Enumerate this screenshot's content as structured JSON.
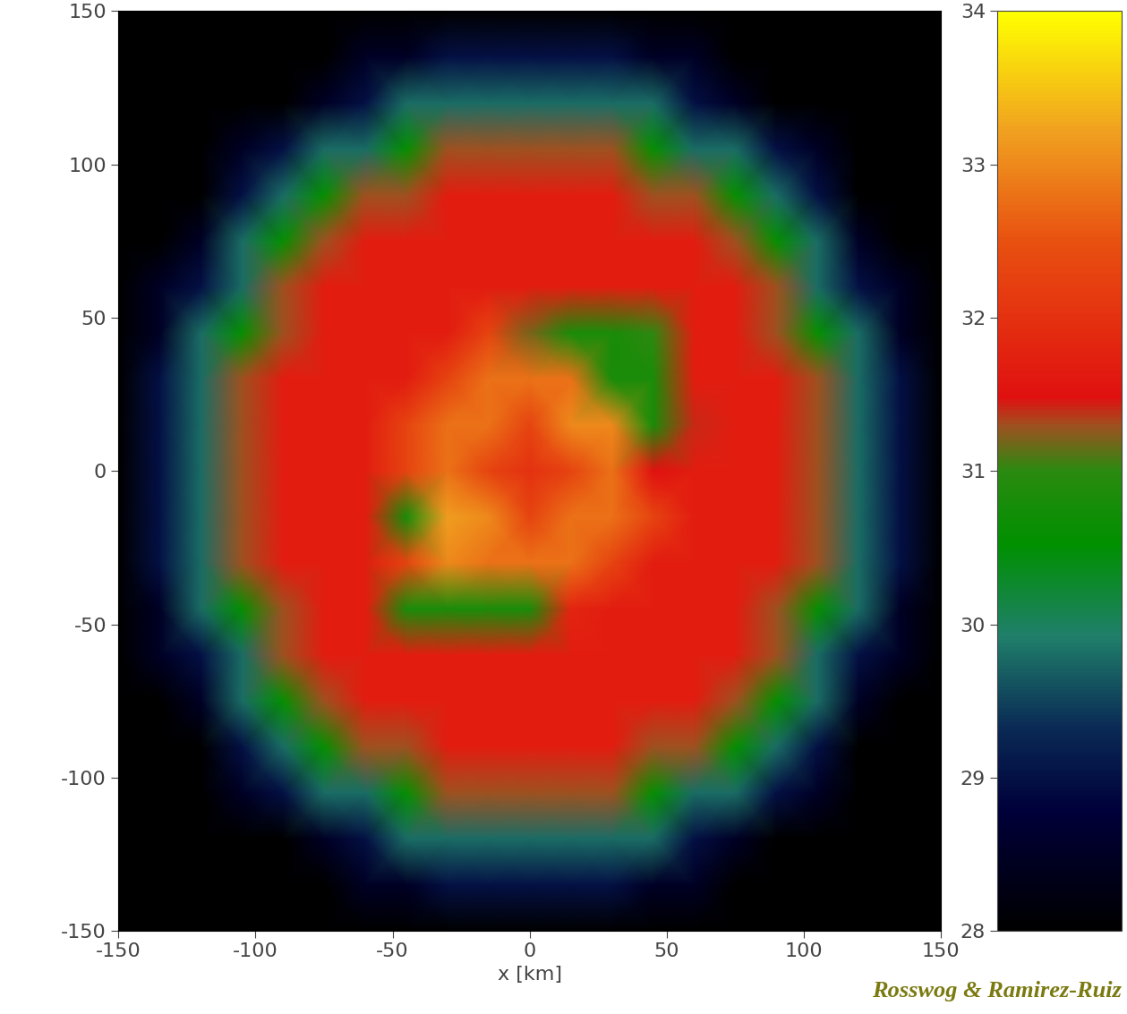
{
  "chart_data": {
    "type": "heatmap",
    "x_label": "x [km]",
    "annotation": "Rosswog & Ramirez-Ruiz",
    "xlim": [
      -150,
      150
    ],
    "ylim": [
      -150,
      150
    ],
    "xticks": [
      -150,
      -100,
      -50,
      0,
      50,
      100,
      150
    ],
    "yticks": [
      -150,
      -100,
      -50,
      0,
      50,
      100,
      150
    ],
    "x": [
      -150,
      -135,
      -120,
      -105,
      -90,
      -75,
      -60,
      -45,
      -30,
      -15,
      0,
      15,
      30,
      45,
      60,
      75,
      90,
      105,
      120,
      135,
      150
    ],
    "y": [
      150,
      135,
      120,
      105,
      90,
      75,
      60,
      45,
      30,
      15,
      0,
      -15,
      -30,
      -45,
      -60,
      -75,
      -90,
      -105,
      -120,
      -135,
      -150
    ],
    "cells": [
      [
        28,
        28,
        28,
        28,
        28,
        28,
        28,
        28,
        28,
        28,
        28,
        28,
        28,
        28,
        28,
        28,
        28,
        28,
        28,
        28,
        28
      ],
      [
        28,
        28,
        28,
        28,
        28,
        28,
        28.5,
        28.5,
        29,
        29,
        29,
        29,
        29,
        28.5,
        28.5,
        28,
        28,
        28,
        28,
        28,
        28
      ],
      [
        28,
        28,
        28,
        28,
        28,
        28.5,
        29,
        29.8,
        29.8,
        29.8,
        29.8,
        29.8,
        29.8,
        29.8,
        29,
        28.5,
        28,
        28,
        28,
        28,
        28
      ],
      [
        28,
        28,
        28,
        28.5,
        29,
        29.8,
        29.8,
        30.6,
        31.3,
        31.3,
        31.3,
        31.3,
        31.3,
        30.6,
        29.8,
        29.8,
        29,
        28.5,
        28,
        28,
        28
      ],
      [
        28,
        28,
        28,
        29,
        29.8,
        30.6,
        31.3,
        31.3,
        31.7,
        31.7,
        31.7,
        31.7,
        31.7,
        31.3,
        31.3,
        30.6,
        29.8,
        29,
        28,
        28,
        28
      ],
      [
        28,
        28,
        28.5,
        29.8,
        30.6,
        31.3,
        31.7,
        31.7,
        31.7,
        31.7,
        31.7,
        31.7,
        31.7,
        31.7,
        31.7,
        31.3,
        30.6,
        29.8,
        28.5,
        28,
        28
      ],
      [
        28,
        28.5,
        29,
        29.8,
        31.3,
        31.7,
        31.7,
        31.7,
        31.7,
        31.7,
        31.7,
        31.7,
        31.7,
        31.7,
        31.7,
        31.7,
        31.3,
        29.8,
        29,
        28.5,
        28
      ],
      [
        28,
        28.5,
        29.8,
        30.6,
        31.3,
        31.7,
        31.7,
        31.7,
        31.7,
        32.3,
        31.2,
        30.8,
        30.8,
        31.0,
        31.7,
        31.7,
        31.3,
        30.6,
        29.8,
        28.5,
        28
      ],
      [
        28,
        29,
        29.8,
        31.3,
        31.7,
        31.7,
        31.7,
        31.7,
        32.3,
        32.8,
        32.8,
        32.8,
        30.8,
        30.8,
        31.7,
        31.7,
        31.7,
        31.3,
        29.8,
        29,
        28
      ],
      [
        28,
        29,
        29.8,
        31.3,
        31.7,
        31.7,
        31.7,
        32.3,
        32.8,
        32.8,
        32.3,
        33.0,
        33.0,
        30.8,
        31.4,
        31.7,
        31.7,
        31.3,
        29.8,
        29,
        28
      ],
      [
        28,
        29,
        29.8,
        31.3,
        31.7,
        31.7,
        31.7,
        32.3,
        32.8,
        32.3,
        32.0,
        32.3,
        32.8,
        31.5,
        31.7,
        31.7,
        31.7,
        31.3,
        29.8,
        29,
        28
      ],
      [
        28,
        29,
        29.8,
        31.3,
        31.7,
        31.7,
        31.7,
        30.8,
        33.2,
        33.0,
        32.3,
        32.8,
        32.8,
        32.3,
        31.7,
        31.7,
        31.7,
        31.3,
        29.8,
        29,
        28
      ],
      [
        28,
        29,
        29.8,
        31.3,
        31.7,
        31.7,
        31.7,
        32.3,
        33.0,
        32.8,
        32.8,
        32.8,
        32.3,
        31.7,
        31.7,
        31.7,
        31.7,
        31.3,
        29.8,
        29,
        28
      ],
      [
        28,
        28.5,
        29.8,
        30.6,
        31.3,
        31.7,
        31.7,
        30.8,
        30.8,
        30.8,
        30.8,
        31.8,
        31.7,
        31.7,
        31.7,
        31.7,
        31.3,
        30.6,
        29.8,
        28.5,
        28
      ],
      [
        28,
        28.5,
        29,
        29.8,
        31.3,
        31.7,
        31.7,
        31.7,
        31.7,
        31.7,
        31.7,
        31.7,
        31.7,
        31.7,
        31.7,
        31.7,
        31.3,
        29.8,
        29,
        28.5,
        28
      ],
      [
        28,
        28,
        28.5,
        29.8,
        30.6,
        31.3,
        31.7,
        31.7,
        31.7,
        31.7,
        31.7,
        31.7,
        31.7,
        31.7,
        31.7,
        31.3,
        30.6,
        29.8,
        28.5,
        28,
        28
      ],
      [
        28,
        28,
        28,
        29,
        29.8,
        30.6,
        31.3,
        31.3,
        31.7,
        31.7,
        31.7,
        31.7,
        31.7,
        31.3,
        31.3,
        30.6,
        29.8,
        29,
        28,
        28,
        28
      ],
      [
        28,
        28,
        28,
        28.5,
        29,
        29.8,
        29.8,
        30.6,
        31.3,
        31.3,
        31.3,
        31.3,
        31.3,
        30.6,
        29.8,
        29.8,
        29,
        28.5,
        28,
        28,
        28
      ],
      [
        28,
        28,
        28,
        28,
        28,
        28.5,
        29,
        29.8,
        29.8,
        29.8,
        29.8,
        29.8,
        29.8,
        29.8,
        29,
        28.5,
        28,
        28,
        28,
        28,
        28
      ],
      [
        28,
        28,
        28,
        28,
        28,
        28,
        28.5,
        28.5,
        29,
        29,
        29,
        29,
        29,
        28.5,
        28.5,
        28,
        28,
        28,
        28,
        28,
        28
      ],
      [
        28,
        28,
        28,
        28,
        28,
        28,
        28,
        28,
        28,
        28,
        28,
        28,
        28,
        28,
        28,
        28,
        28,
        28,
        28,
        28,
        28
      ]
    ],
    "colorbar_range": [
      28,
      34
    ],
    "colorbar_ticks": [
      28,
      29,
      30,
      31,
      32,
      33,
      34
    ]
  }
}
